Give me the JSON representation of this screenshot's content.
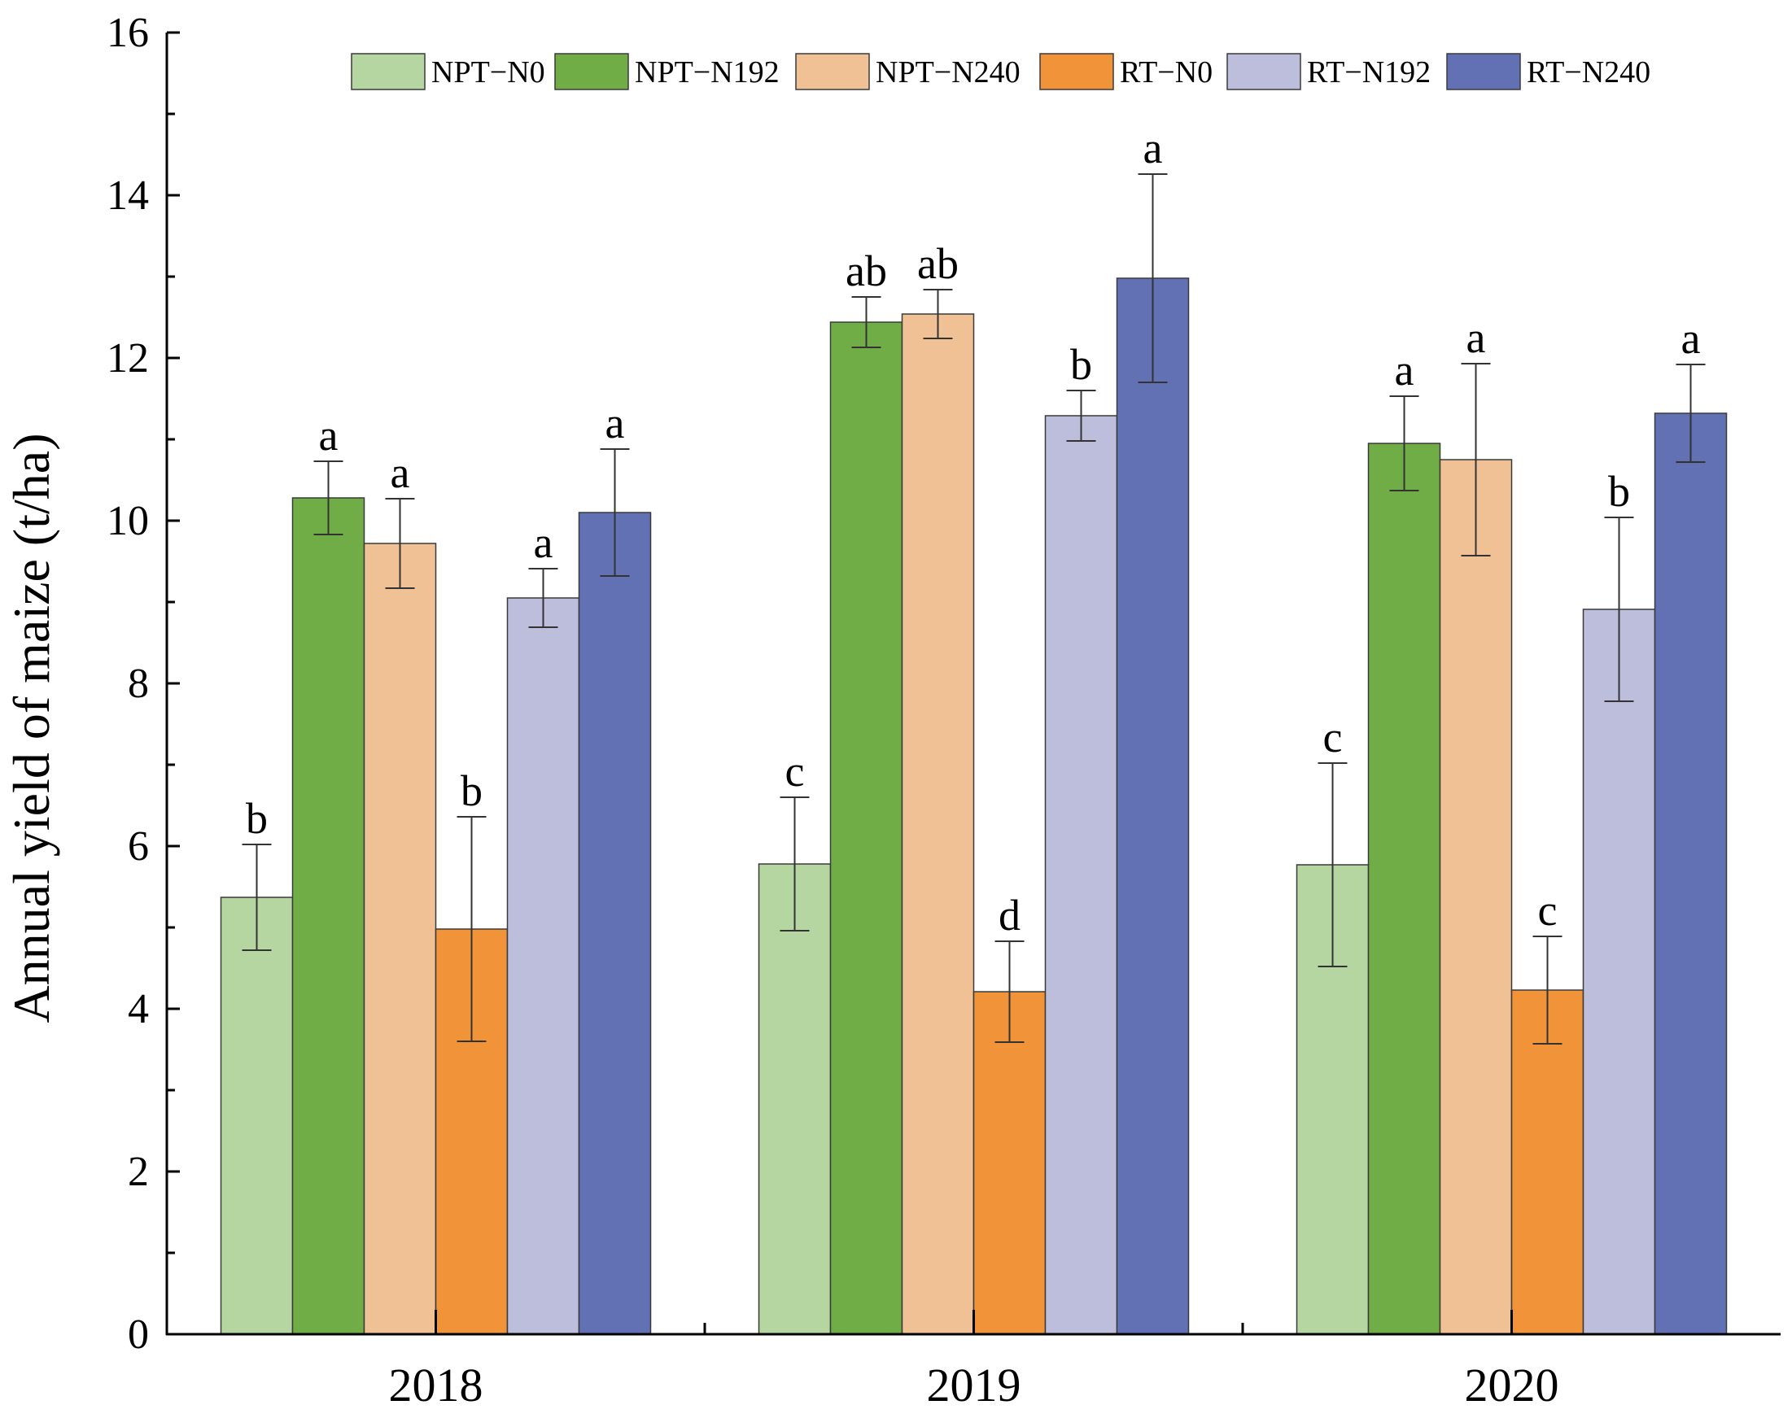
{
  "chart_data": {
    "type": "bar",
    "title": "",
    "xlabel": "",
    "ylabel": "Annual yield of maize (t/ha)",
    "ylim": [
      0,
      16
    ],
    "yticks": [
      "0",
      "2",
      "4",
      "6",
      "8",
      "10",
      "12",
      "14",
      "16"
    ],
    "grid": false,
    "legend_position": "top",
    "categories": [
      "2018",
      "2019",
      "2020"
    ],
    "series": [
      {
        "name": "NPT−N0",
        "color": "#b5d6a0",
        "values": [
          5.37,
          5.78,
          5.77
        ],
        "errors": [
          0.65,
          0.82,
          1.25
        ],
        "labels": [
          "b",
          "c",
          "c"
        ]
      },
      {
        "name": "NPT−N192",
        "color": "#70ad47",
        "values": [
          10.28,
          12.44,
          10.95
        ],
        "errors": [
          0.45,
          0.31,
          0.58
        ],
        "labels": [
          "a",
          "ab",
          "a"
        ]
      },
      {
        "name": "NPT−N240",
        "color": "#efc194",
        "values": [
          9.72,
          12.54,
          10.75
        ],
        "errors": [
          0.55,
          0.3,
          1.18
        ],
        "labels": [
          "a",
          "ab",
          "a"
        ]
      },
      {
        "name": "RT−N0",
        "color": "#f19338",
        "values": [
          4.98,
          4.21,
          4.23
        ],
        "errors": [
          1.38,
          0.62,
          0.66
        ],
        "labels": [
          "b",
          "d",
          "c"
        ]
      },
      {
        "name": "RT−N192",
        "color": "#bdbddc",
        "values": [
          9.05,
          11.29,
          8.91
        ],
        "errors": [
          0.36,
          0.31,
          1.13
        ],
        "labels": [
          "a",
          "b",
          "b"
        ]
      },
      {
        "name": "RT−N240",
        "color": "#6271b3",
        "values": [
          10.1,
          12.98,
          11.32
        ],
        "errors": [
          0.78,
          1.28,
          0.6
        ],
        "labels": [
          "a",
          "a",
          "a"
        ]
      }
    ]
  }
}
